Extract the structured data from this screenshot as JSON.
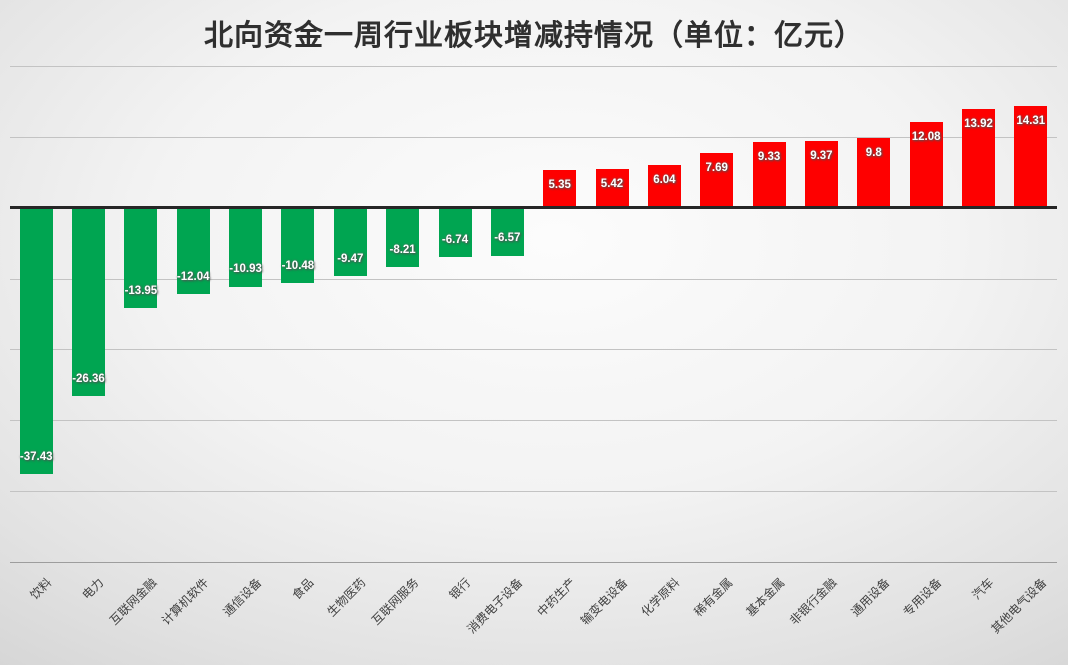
{
  "chart_data": {
    "type": "bar",
    "title": "北向资金一周行业板块增减持情况（单位：亿元）",
    "categories": [
      "饮料",
      "电力",
      "互联网金融",
      "计算机软件",
      "通信设备",
      "食品",
      "生物医药",
      "互联网服务",
      "银行",
      "消费电子设备",
      "中药生产",
      "输变电设备",
      "化学原料",
      "稀有金属",
      "基本金属",
      "非银行金融",
      "通用设备",
      "专用设备",
      "汽车",
      "其他电气设备"
    ],
    "values": [
      -37.43,
      -26.36,
      -13.95,
      -12.04,
      -10.93,
      -10.48,
      -9.47,
      -8.21,
      -6.74,
      -6.57,
      5.35,
      5.42,
      6.04,
      7.69,
      9.33,
      9.37,
      9.8,
      12.08,
      13.92,
      14.31
    ],
    "data_labels": [
      "-37.43",
      "-26.36",
      "-13.95",
      "-12.04",
      "-10.93",
      "-10.48",
      "-9.47",
      "-8.21",
      "-6.74",
      "-6.57",
      "5.35",
      "5.42",
      "6.04",
      "7.69",
      "9.33",
      "9.37",
      "9.8",
      "12.08",
      "13.92",
      "14.31"
    ],
    "xlabel": "",
    "ylabel": "",
    "ylim": [
      -50,
      20
    ],
    "gridline_step": 10,
    "grid": true,
    "legend": false,
    "label_position": "inside-end",
    "category_label_rotation_deg": 45,
    "colors": {
      "positive_bar": "#fe0000",
      "negative_bar": "#00a551",
      "data_label": "#ffffff",
      "zero_axis_line": "#262626",
      "gridline": "#c3c3c3",
      "category_label": "#404040",
      "title": "#2f2f2f"
    }
  }
}
